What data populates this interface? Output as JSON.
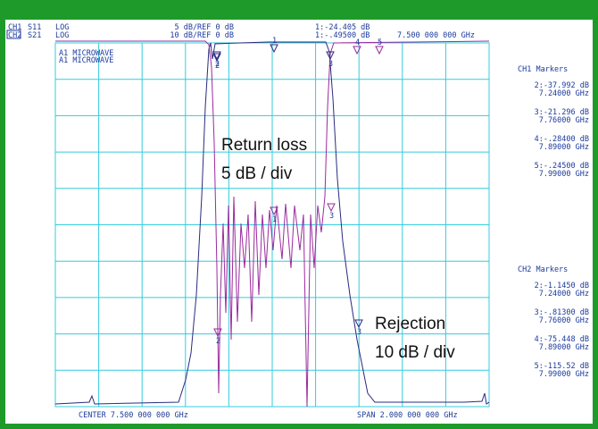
{
  "header": {
    "ch1": {
      "channel": "CH1",
      "param": "S11",
      "format": "LOG",
      "scale": "5 dB/REF 0 dB",
      "marker": "1:-24.405 dB"
    },
    "ch2": {
      "channel": "CH2",
      "param": "S21",
      "format": "LOG",
      "scale": "10 dB/REF 0 dB",
      "marker": "1:-.49500 dB"
    },
    "frequency": "7.500 000 000 GHz"
  },
  "labels": [
    "A1 MICROWAVE",
    "A1 MICROWAVE"
  ],
  "marker_flags": [
    "1",
    "2",
    "3",
    "4",
    "5",
    "1",
    "2",
    "3",
    "2",
    "3"
  ],
  "ch1_markers": {
    "title": "CH1 Markers",
    "items": [
      {
        "value": "2:-37.992 dB",
        "freq": "7.24000 GHz"
      },
      {
        "value": "3:-21.296 dB",
        "freq": "7.76000 GHz"
      },
      {
        "value": "4:-.28400 dB",
        "freq": "7.89000 GHz"
      },
      {
        "value": "5:-.24500 dB",
        "freq": "7.99000 GHz"
      }
    ]
  },
  "ch2_markers": {
    "title": "CH2 Markers",
    "items": [
      {
        "value": "2:-1.1450 dB",
        "freq": "7.24000 GHz"
      },
      {
        "value": "3:-.81300 dB",
        "freq": "7.76000 GHz"
      },
      {
        "value": "4:-75.448 dB",
        "freq": "7.89000 GHz"
      },
      {
        "value": "5:-115.52 dB",
        "freq": "7.99000 GHz"
      }
    ]
  },
  "footer": {
    "center": "CENTER 7.500 000 000 GHz",
    "span": "SPAN 2.000 000 000 GHz"
  },
  "annotations": {
    "return_loss": [
      "Return loss",
      "5 dB / div"
    ],
    "rejection": [
      "Rejection",
      "10 dB / div"
    ]
  }
}
